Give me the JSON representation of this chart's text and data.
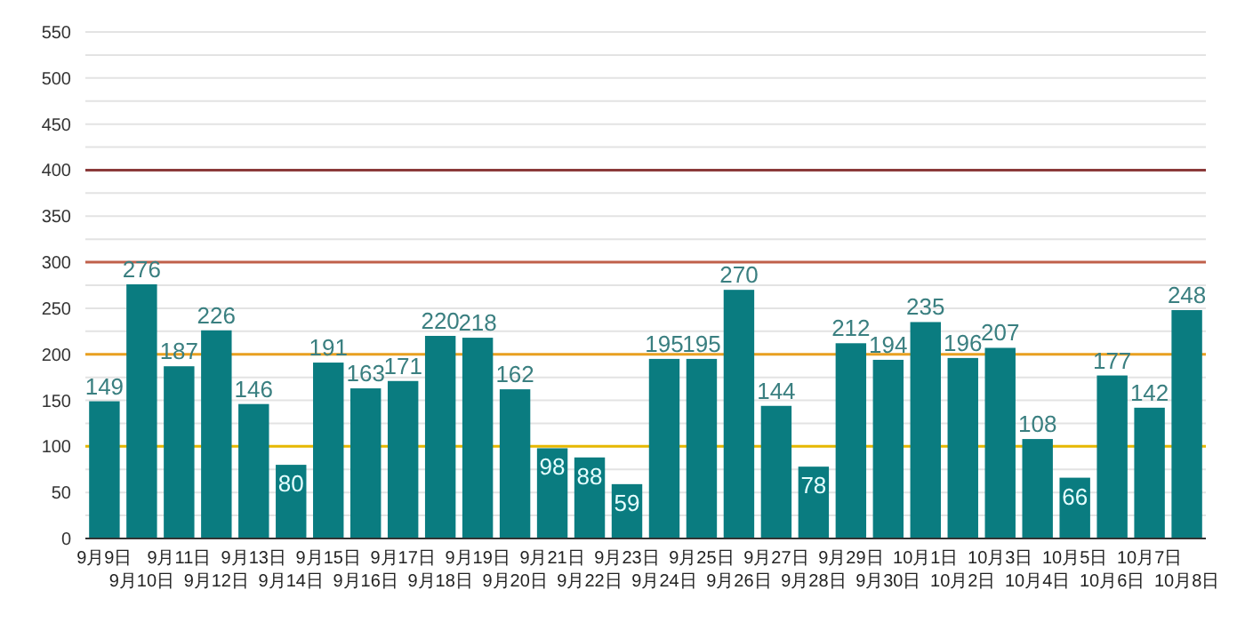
{
  "chart_data": {
    "type": "bar",
    "categories": [
      "9月9日",
      "9月10日",
      "9月11日",
      "9月12日",
      "9月13日",
      "9月14日",
      "9月15日",
      "9月16日",
      "9月17日",
      "9月18日",
      "9月19日",
      "9月20日",
      "9月21日",
      "9月22日",
      "9月23日",
      "9月24日",
      "9月25日",
      "9月26日",
      "9月27日",
      "9月28日",
      "9月29日",
      "9月30日",
      "10月1日",
      "10月2日",
      "10月3日",
      "10月4日",
      "10月5日",
      "10月6日",
      "10月7日",
      "10月8日"
    ],
    "values": [
      149,
      276,
      187,
      226,
      146,
      80,
      191,
      163,
      171,
      220,
      218,
      162,
      98,
      88,
      59,
      195,
      195,
      270,
      144,
      78,
      212,
      194,
      235,
      196,
      207,
      108,
      66,
      177,
      142,
      248
    ],
    "color": "#0a7c80",
    "ylim": [
      0,
      550
    ],
    "yticks": [
      0,
      {
        "value": 25,
        "label": null
      },
      50,
      {
        "value": 75,
        "label": null
      },
      100,
      {
        "value": 125,
        "label": null
      },
      150,
      {
        "value": 175,
        "label": null
      },
      200,
      {
        "value": 225,
        "label": null
      },
      250,
      {
        "value": 275,
        "label": null
      },
      300,
      {
        "value": 325,
        "label": null
      },
      350,
      {
        "value": 375,
        "label": null
      },
      400,
      {
        "value": 425,
        "label": null
      },
      450,
      {
        "value": 475,
        "label": null
      },
      500,
      {
        "value": 525,
        "label": null
      },
      550
    ],
    "grid": true,
    "data_labels": true,
    "ref_lines": [
      {
        "axis": "y",
        "value": 100,
        "color": "#e6b800"
      },
      {
        "axis": "y",
        "value": 200,
        "color": "#e8a020"
      },
      {
        "axis": "y",
        "value": 300,
        "color": "#c0604a"
      },
      {
        "axis": "y",
        "value": 400,
        "color": "#8b3a3a"
      }
    ]
  }
}
